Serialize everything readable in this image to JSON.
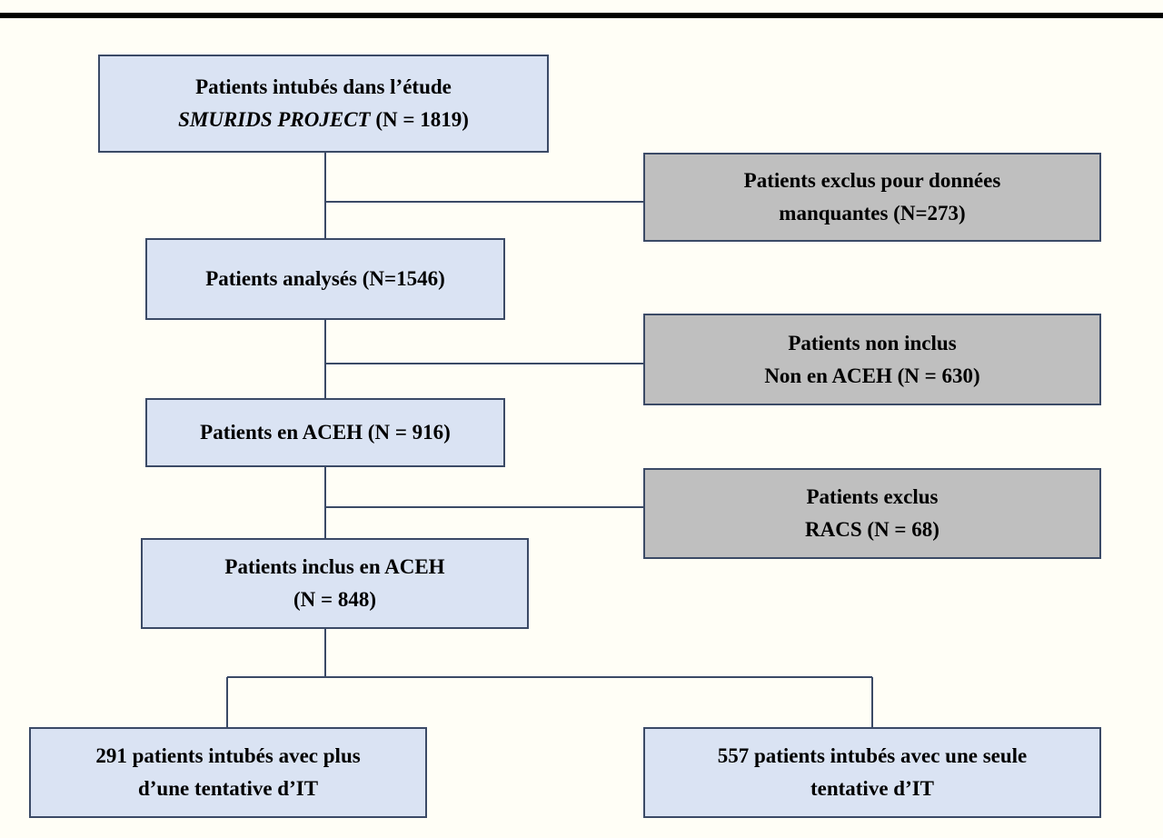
{
  "nodes": [
    {
      "lines": [
        "Patients intubés dans l’étude",
        {
          "italic": "SMURIDS PROJECT",
          "text": " (N = 1819)"
        }
      ]
    },
    {
      "lines": [
        "Patients exclus pour données",
        "manquantes (N=273)"
      ]
    },
    {
      "lines": [
        "Patients analysés (N=1546)"
      ]
    },
    {
      "lines": [
        "Patients non inclus",
        "Non en ACEH (N = 630)"
      ]
    },
    {
      "lines": [
        "Patients en ACEH (N = 916)"
      ]
    },
    {
      "lines": [
        "Patients exclus",
        "RACS (N = 68)"
      ]
    },
    {
      "lines": [
        "Patients inclus en ACEH",
        "(N = 848)"
      ]
    },
    {
      "lines": [
        "291 patients intubés avec plus",
        "d’une tentative d’IT"
      ]
    },
    {
      "lines": [
        "557 patients intubés avec une seule",
        "tentative d’IT"
      ]
    }
  ]
}
